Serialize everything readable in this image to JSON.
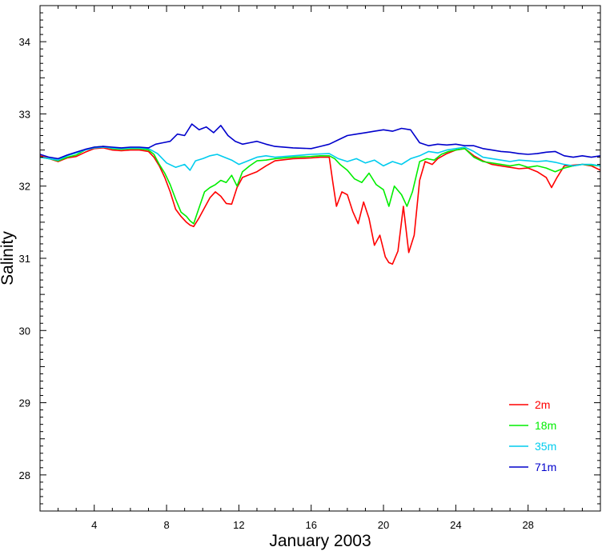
{
  "chart_data": {
    "type": "line",
    "xlabel": "January 2003",
    "ylabel": "Salinity",
    "xlim": [
      1,
      32
    ],
    "ylim": [
      27.5,
      34.5
    ],
    "x_ticks": [
      4,
      8,
      12,
      16,
      20,
      24,
      28
    ],
    "y_ticks": [
      28,
      29,
      30,
      31,
      32,
      33,
      34
    ],
    "grid": false,
    "legend_position": "bottom-right",
    "series": [
      {
        "name": "2m",
        "color": "#ff0000",
        "x": [
          1.0,
          1.5,
          2.0,
          2.5,
          3.0,
          3.5,
          4.0,
          4.5,
          5.0,
          5.5,
          6.0,
          6.5,
          7.0,
          7.3,
          7.6,
          7.9,
          8.2,
          8.5,
          8.8,
          9.1,
          9.3,
          9.5,
          9.8,
          10.1,
          10.4,
          10.7,
          11.0,
          11.3,
          11.6,
          11.9,
          12.2,
          12.6,
          13.0,
          13.5,
          14.0,
          15.0,
          16.0,
          16.5,
          17.0,
          17.2,
          17.4,
          17.7,
          18.0,
          18.3,
          18.6,
          18.9,
          19.2,
          19.5,
          19.8,
          20.1,
          20.3,
          20.5,
          20.8,
          21.1,
          21.4,
          21.7,
          22.0,
          22.3,
          22.7,
          23.0,
          23.5,
          24.0,
          24.5,
          25.0,
          25.5,
          26.0,
          26.5,
          27.0,
          27.5,
          28.0,
          28.5,
          29.0,
          29.3,
          29.6,
          30.0,
          30.5,
          31.0,
          31.5,
          32.0
        ],
        "values": [
          32.42,
          32.38,
          32.34,
          32.39,
          32.41,
          32.47,
          32.52,
          32.53,
          32.5,
          32.49,
          32.5,
          32.5,
          32.48,
          32.4,
          32.28,
          32.12,
          31.92,
          31.68,
          31.58,
          31.5,
          31.46,
          31.44,
          31.56,
          31.7,
          31.84,
          31.92,
          31.86,
          31.76,
          31.75,
          31.98,
          32.12,
          32.16,
          32.2,
          32.28,
          32.35,
          32.38,
          32.39,
          32.4,
          32.4,
          32.05,
          31.72,
          31.92,
          31.88,
          31.65,
          31.48,
          31.78,
          31.55,
          31.18,
          31.32,
          31.02,
          30.94,
          30.92,
          31.1,
          31.72,
          31.08,
          31.32,
          32.08,
          32.34,
          32.3,
          32.38,
          32.45,
          32.5,
          32.52,
          32.42,
          32.35,
          32.3,
          32.28,
          32.26,
          32.24,
          32.25,
          32.2,
          32.12,
          31.98,
          32.12,
          32.28,
          32.29,
          32.3,
          32.28,
          32.22
        ]
      },
      {
        "name": "18m",
        "color": "#00ee00",
        "x": [
          1.0,
          1.5,
          2.0,
          2.5,
          3.0,
          3.5,
          4.0,
          4.5,
          5.0,
          5.5,
          6.0,
          6.5,
          7.0,
          7.3,
          7.6,
          7.9,
          8.2,
          8.5,
          8.8,
          9.1,
          9.3,
          9.5,
          9.8,
          10.1,
          10.4,
          10.7,
          11.0,
          11.3,
          11.6,
          11.9,
          12.2,
          12.6,
          13.0,
          13.5,
          14.0,
          15.0,
          16.0,
          16.5,
          17.0,
          17.3,
          17.6,
          18.0,
          18.4,
          18.8,
          19.2,
          19.6,
          20.0,
          20.3,
          20.6,
          21.0,
          21.3,
          21.6,
          22.0,
          22.4,
          22.8,
          23.2,
          23.6,
          24.0,
          24.5,
          25.0,
          25.5,
          26.0,
          26.5,
          27.0,
          27.5,
          28.0,
          28.5,
          29.0,
          29.5,
          30.0,
          30.5,
          31.0,
          31.5,
          32.0
        ],
        "values": [
          32.4,
          32.38,
          32.35,
          32.4,
          32.43,
          32.5,
          32.54,
          32.55,
          32.52,
          32.51,
          32.52,
          32.52,
          32.5,
          32.44,
          32.3,
          32.18,
          32.02,
          31.82,
          31.64,
          31.58,
          31.52,
          31.48,
          31.7,
          31.92,
          31.98,
          32.02,
          32.08,
          32.05,
          32.15,
          32.0,
          32.2,
          32.28,
          32.35,
          32.36,
          32.38,
          32.4,
          32.41,
          32.42,
          32.42,
          32.38,
          32.3,
          32.22,
          32.1,
          32.05,
          32.18,
          32.02,
          31.95,
          31.72,
          32.0,
          31.88,
          31.72,
          31.92,
          32.34,
          32.38,
          32.36,
          32.44,
          32.48,
          32.5,
          32.52,
          32.4,
          32.34,
          32.32,
          32.3,
          32.28,
          32.3,
          32.26,
          32.28,
          32.25,
          32.2,
          32.25,
          32.28,
          32.3,
          32.29,
          32.28
        ]
      },
      {
        "name": "35m",
        "color": "#00ccee",
        "x": [
          1.0,
          1.5,
          2.0,
          2.5,
          3.0,
          3.5,
          4.0,
          4.5,
          5.0,
          5.5,
          6.0,
          6.5,
          7.0,
          7.5,
          8.0,
          8.5,
          9.0,
          9.3,
          9.6,
          10.0,
          10.4,
          10.8,
          11.2,
          11.6,
          12.0,
          12.5,
          13.0,
          13.5,
          14.0,
          15.0,
          16.0,
          17.0,
          17.5,
          18.0,
          18.5,
          19.0,
          19.5,
          20.0,
          20.5,
          21.0,
          21.5,
          22.0,
          22.5,
          23.0,
          23.5,
          24.0,
          24.5,
          25.0,
          25.5,
          26.0,
          26.5,
          27.0,
          27.5,
          28.0,
          28.5,
          29.0,
          29.5,
          30.0,
          30.5,
          31.0,
          31.5,
          32.0
        ],
        "values": [
          32.4,
          32.38,
          32.36,
          32.42,
          32.46,
          32.5,
          32.53,
          32.54,
          32.53,
          32.52,
          32.53,
          32.53,
          32.52,
          32.45,
          32.32,
          32.26,
          32.3,
          32.22,
          32.35,
          32.38,
          32.42,
          32.44,
          32.4,
          32.36,
          32.3,
          32.35,
          32.4,
          32.42,
          32.4,
          32.42,
          32.44,
          32.45,
          32.38,
          32.34,
          32.38,
          32.32,
          32.36,
          32.28,
          32.34,
          32.3,
          32.38,
          32.42,
          32.48,
          32.46,
          32.5,
          32.52,
          32.54,
          32.48,
          32.4,
          32.38,
          32.36,
          32.34,
          32.36,
          32.35,
          32.34,
          32.35,
          32.33,
          32.3,
          32.28,
          32.3,
          32.3,
          32.28
        ]
      },
      {
        "name": "71m",
        "color": "#0000cc",
        "x": [
          1.0,
          1.5,
          2.0,
          2.5,
          3.0,
          3.5,
          4.0,
          4.5,
          5.0,
          5.5,
          6.0,
          6.5,
          7.0,
          7.4,
          7.8,
          8.2,
          8.6,
          9.0,
          9.4,
          9.8,
          10.2,
          10.6,
          11.0,
          11.4,
          11.8,
          12.2,
          12.6,
          13.0,
          13.5,
          14.0,
          15.0,
          16.0,
          16.5,
          17.0,
          17.5,
          18.0,
          18.5,
          19.0,
          19.5,
          20.0,
          20.5,
          21.0,
          21.5,
          22.0,
          22.5,
          23.0,
          23.5,
          24.0,
          24.5,
          25.0,
          25.5,
          26.0,
          26.5,
          27.0,
          27.5,
          28.0,
          28.5,
          29.0,
          29.5,
          30.0,
          30.5,
          31.0,
          31.5,
          32.0
        ],
        "values": [
          32.44,
          32.4,
          32.38,
          32.43,
          32.47,
          32.51,
          32.54,
          32.55,
          32.54,
          32.53,
          32.54,
          32.54,
          32.53,
          32.58,
          32.6,
          32.62,
          32.72,
          32.7,
          32.86,
          32.78,
          32.82,
          32.74,
          32.84,
          32.7,
          32.62,
          32.58,
          32.6,
          32.62,
          32.58,
          32.55,
          32.53,
          32.52,
          32.55,
          32.58,
          32.64,
          32.7,
          32.72,
          32.74,
          32.76,
          32.78,
          32.76,
          32.8,
          32.78,
          32.6,
          32.56,
          32.58,
          32.57,
          32.58,
          32.56,
          32.56,
          32.52,
          32.5,
          32.48,
          32.47,
          32.45,
          32.44,
          32.45,
          32.47,
          32.48,
          32.42,
          32.4,
          32.42,
          32.4,
          32.42
        ]
      }
    ]
  }
}
